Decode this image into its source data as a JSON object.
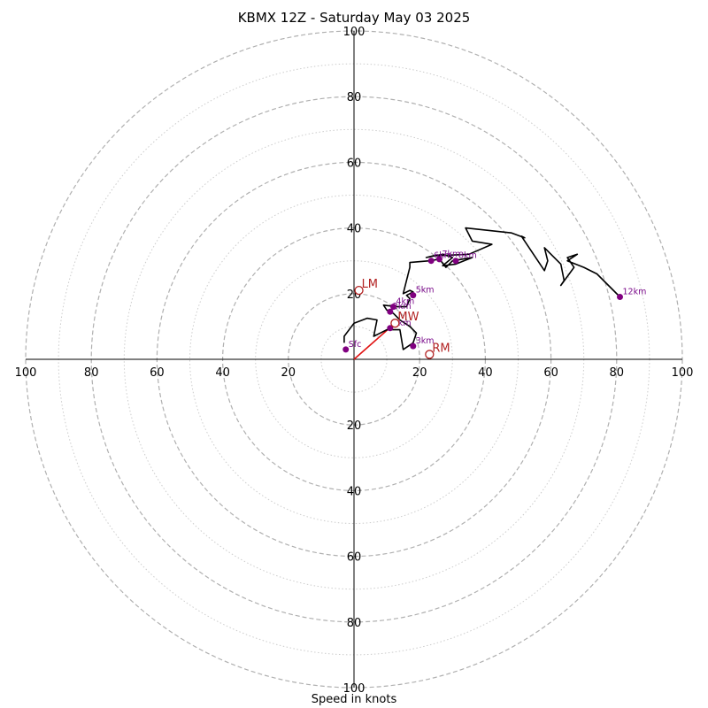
{
  "chart_data": {
    "type": "hodograph",
    "title": "KBMX 12Z - Saturday May 03 2025",
    "xlabel": "Speed in knots",
    "range_knots": 100,
    "ring_step_major": 20,
    "ring_step_minor": 10,
    "tick_values": [
      20,
      40,
      60,
      80,
      100
    ],
    "colors": {
      "trace": "#000000",
      "height_marker": "#800080",
      "motion_marker": "#b22222",
      "motion_vector": "#e01010",
      "major_ring": "#b0b0b0",
      "minor_ring": "#cccccc",
      "axis": "#000000"
    },
    "trace": [
      [
        -3,
        5
      ],
      [
        -3,
        7
      ],
      [
        0,
        11
      ],
      [
        4,
        12.5
      ],
      [
        7,
        12
      ],
      [
        6,
        7
      ],
      [
        8,
        8
      ],
      [
        10,
        9
      ],
      [
        14,
        9
      ],
      [
        15,
        3
      ],
      [
        18,
        5
      ],
      [
        19,
        8
      ],
      [
        17,
        10
      ],
      [
        14,
        12
      ],
      [
        12,
        14
      ],
      [
        10,
        15
      ],
      [
        9,
        16.5
      ],
      [
        13,
        16
      ],
      [
        16,
        16
      ],
      [
        17,
        18.5
      ],
      [
        16,
        19.5
      ],
      [
        17,
        20
      ],
      [
        18,
        20.5
      ],
      [
        17,
        21
      ],
      [
        15,
        20
      ],
      [
        17,
        28
      ],
      [
        17,
        29.5
      ],
      [
        23,
        30
      ],
      [
        26,
        30.5
      ],
      [
        28,
        28
      ],
      [
        30,
        30
      ],
      [
        33,
        30.5
      ],
      [
        36,
        31
      ],
      [
        31,
        29
      ],
      [
        27,
        28.5
      ],
      [
        30,
        31
      ],
      [
        27,
        32
      ],
      [
        22,
        31
      ],
      [
        24,
        31.5
      ],
      [
        35,
        32
      ],
      [
        42,
        35
      ],
      [
        36,
        36
      ],
      [
        34,
        40
      ],
      [
        48,
        38.5
      ],
      [
        52,
        37
      ],
      [
        51,
        37.5
      ],
      [
        54,
        33
      ],
      [
        58,
        27
      ],
      [
        59,
        30
      ],
      [
        58,
        34
      ],
      [
        63,
        29
      ],
      [
        64,
        24
      ],
      [
        63,
        22.5
      ],
      [
        67,
        28
      ],
      [
        65,
        31
      ],
      [
        68,
        32
      ],
      [
        65,
        30
      ],
      [
        70,
        28
      ],
      [
        74,
        26
      ],
      [
        81,
        19
      ]
    ],
    "height_points": [
      {
        "label": "Sfc",
        "u": -2.5,
        "v": 3
      },
      {
        "label": "1km",
        "u": 11,
        "v": 9.5
      },
      {
        "label": "2km",
        "u": 11,
        "v": 14.5
      },
      {
        "label": "3km",
        "u": 18,
        "v": 4
      },
      {
        "label": "4km",
        "u": 12,
        "v": 16
      },
      {
        "label": "5km",
        "u": 18,
        "v": 19.5
      },
      {
        "label": "6km",
        "u": 23.5,
        "v": 30
      },
      {
        "label": "7km",
        "u": 26,
        "v": 30.5
      },
      {
        "label": "8km",
        "u": 31,
        "v": 30
      },
      {
        "label": "12km",
        "u": 81,
        "v": 19
      }
    ],
    "storm_motions": [
      {
        "label": "LM",
        "u": 1.5,
        "v": 21
      },
      {
        "label": "MW",
        "u": 12.5,
        "v": 11
      },
      {
        "label": "RM",
        "u": 23,
        "v": 1.5
      }
    ],
    "motion_vector": {
      "from": [
        0,
        0
      ],
      "to": [
        12.5,
        11
      ]
    }
  }
}
